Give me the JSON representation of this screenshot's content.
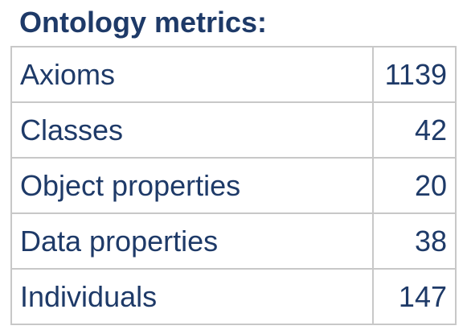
{
  "heading": "Ontology metrics:",
  "metrics": [
    {
      "label": "Axioms",
      "value": "1139"
    },
    {
      "label": "Classes",
      "value": "42"
    },
    {
      "label": "Object properties",
      "value": "20"
    },
    {
      "label": "Data properties",
      "value": "38"
    },
    {
      "label": "Individuals",
      "value": "147"
    }
  ]
}
